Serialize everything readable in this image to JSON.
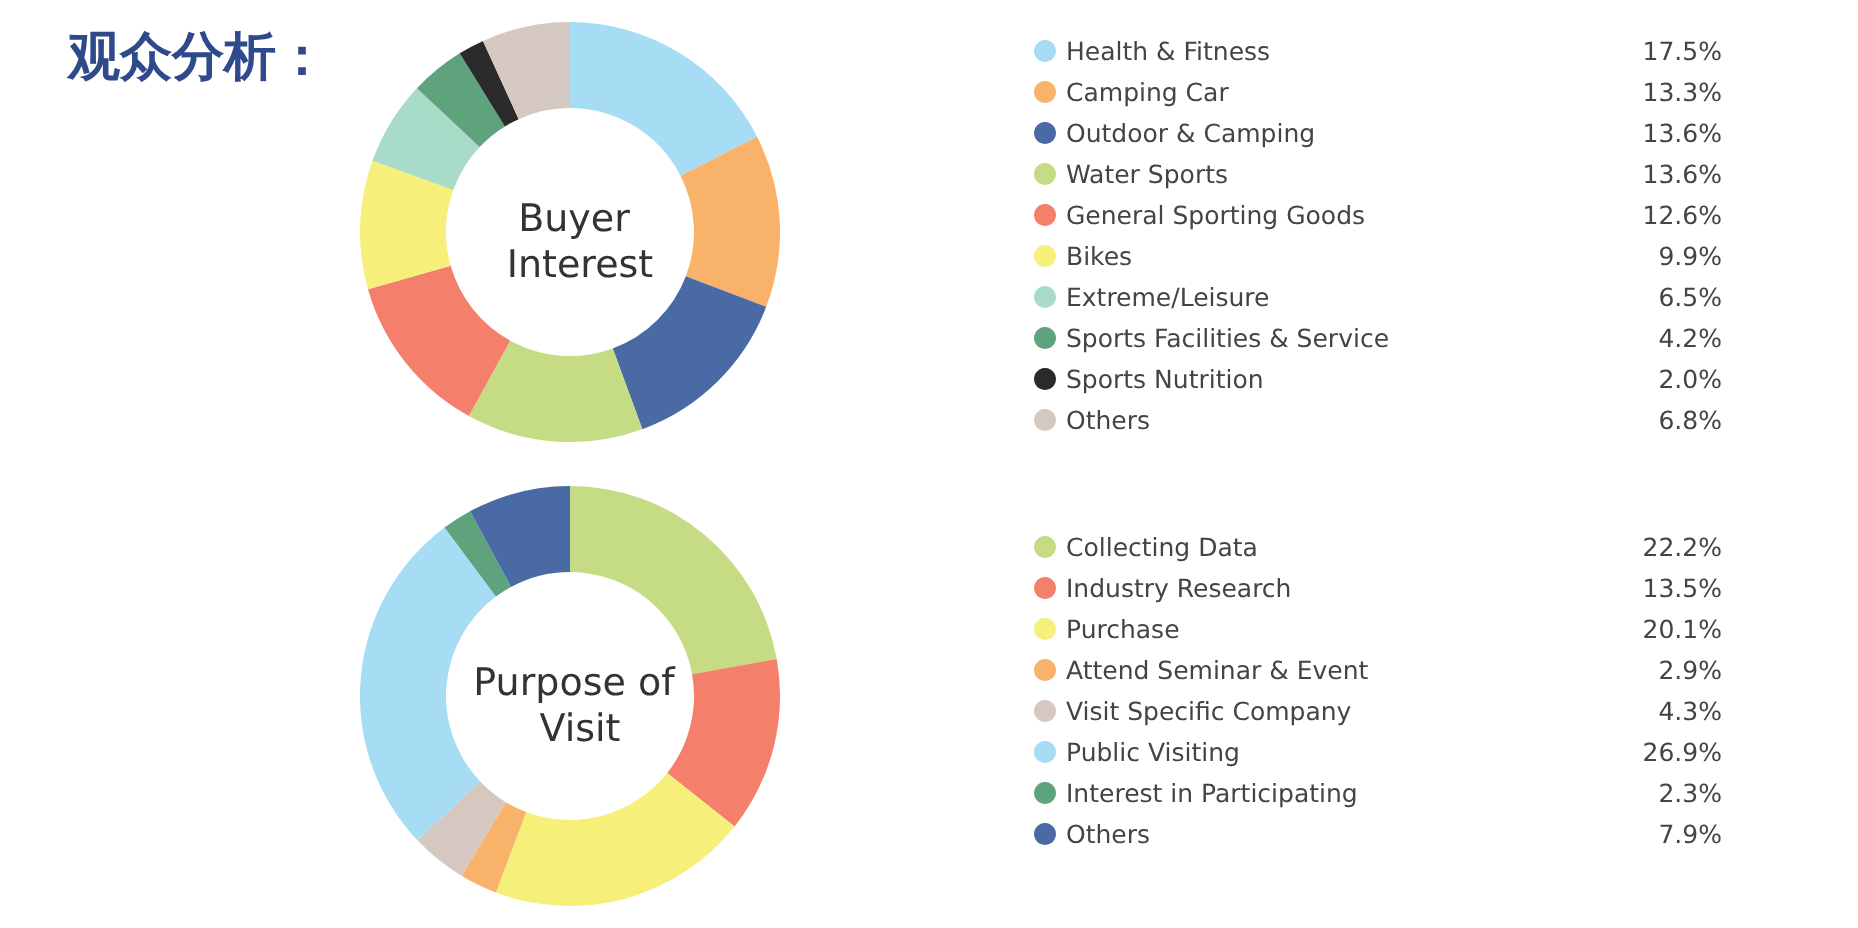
{
  "chart_data": [
    {
      "type": "donut",
      "title": "Buyer Interest",
      "annotations": [
        "观众分析："
      ],
      "legend": "right",
      "categories": [
        "Health & Fitness",
        "Camping Car",
        "Outdoor & Camping",
        "Water Sports",
        "General Sporting Goods",
        "Bikes",
        "Extreme/Leisure",
        "Sports Facilities & Service",
        "Sports Nutrition",
        "Others"
      ],
      "values": [
        17.5,
        13.3,
        13.6,
        13.6,
        12.6,
        9.9,
        6.5,
        4.2,
        2.0,
        6.8
      ],
      "value_labels": [
        "17.5%",
        "13.3%",
        "13.6%",
        "13.6%",
        "12.6%",
        "9.9%",
        "6.5%",
        "4.2%",
        "2.0%",
        "6.8%"
      ],
      "colors": [
        "#a6dcf4",
        "#f8b26a",
        "#4a6aa5",
        "#c5dc85",
        "#f47f6a",
        "#f6ef7a",
        "#a8dcc8",
        "#5fa37c",
        "#2a2a2a",
        "#d5c8c0"
      ]
    },
    {
      "type": "donut",
      "title": "Purpose of Visit",
      "legend": "right",
      "categories": [
        "Collecting Data",
        "Industry Research",
        "Purchase",
        "Attend Seminar & Event",
        "Visit Specific Company",
        "Public Visiting",
        "Interest in Participating",
        "Others"
      ],
      "values": [
        22.2,
        13.5,
        20.1,
        2.9,
        4.3,
        26.9,
        2.3,
        7.9
      ],
      "value_labels": [
        "22.2%",
        "13.5%",
        "20.1%",
        "2.9%",
        "4.3%",
        "26.9%",
        "2.3%",
        "7.9%"
      ],
      "colors": [
        "#c5dc85",
        "#f47f6a",
        "#f6ef7a",
        "#f8b26a",
        "#d5c8c0",
        "#a6dcf4",
        "#5fa37c",
        "#4a6aa5"
      ]
    }
  ]
}
